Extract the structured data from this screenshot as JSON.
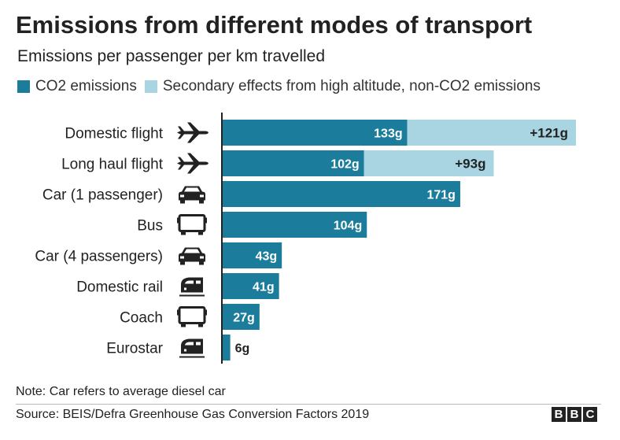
{
  "title": "Emissions from different modes of transport",
  "subtitle": "Emissions per passenger per km travelled",
  "colors": {
    "co2": "#1b7c9c",
    "secondary": "#a9d5e3",
    "axis": "#222222"
  },
  "legend": [
    {
      "label": "CO2 emissions",
      "color": "#1b7c9c"
    },
    {
      "label": "Secondary effects from high altitude, non-CO2 emissions",
      "color": "#a9d5e3"
    }
  ],
  "chart_data": {
    "type": "bar",
    "orientation": "horizontal",
    "stacked": true,
    "categories": [
      "Domestic flight",
      "Long haul flight",
      "Car (1 passenger)",
      "Bus",
      "Car (4 passengers)",
      "Domestic rail",
      "Coach",
      "Eurostar"
    ],
    "icons": [
      "plane-icon",
      "plane-icon",
      "car-icon",
      "bus-icon",
      "car-icon",
      "train-icon",
      "bus-icon",
      "train-icon"
    ],
    "series": [
      {
        "name": "CO2 emissions",
        "values": [
          133,
          102,
          171,
          104,
          43,
          41,
          27,
          6
        ],
        "labels": [
          "133g",
          "102g",
          "171g",
          "104g",
          "43g",
          "41g",
          "27g",
          "6g"
        ]
      },
      {
        "name": "Secondary effects from high altitude, non-CO2 emissions",
        "values": [
          121,
          93,
          0,
          0,
          0,
          0,
          0,
          0
        ],
        "labels": [
          "+121g",
          "+93g",
          "",
          "",
          "",
          "",
          "",
          ""
        ]
      }
    ],
    "xlim": [
      0,
      254
    ],
    "grid": false,
    "legend_position": "top"
  },
  "note": "Note: Car refers to average diesel car",
  "source": "Source: BEIS/Defra Greenhouse Gas Conversion Factors 2019",
  "logo": [
    "B",
    "B",
    "C"
  ]
}
